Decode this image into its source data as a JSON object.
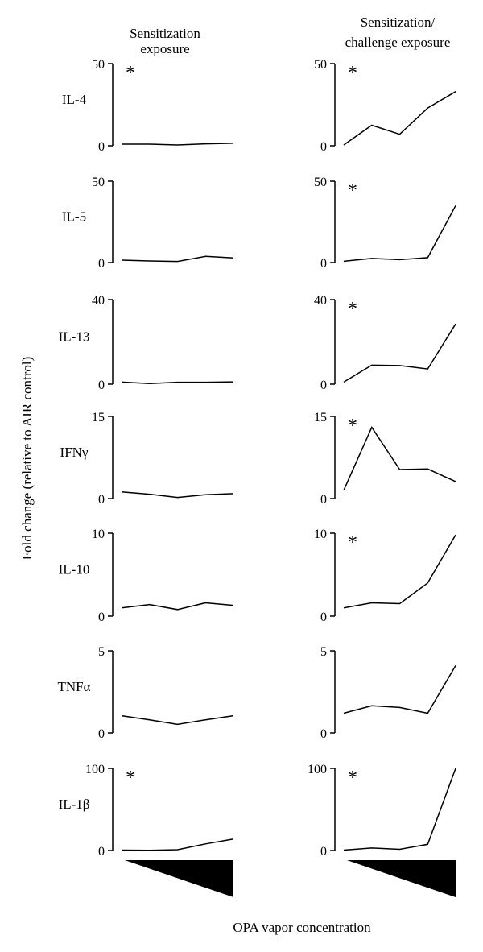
{
  "figure": {
    "col_titles": [
      [
        "Sensitization",
        "exposure"
      ],
      [
        "Sensitization/",
        "challenge exposure"
      ]
    ],
    "ylabel": "Fold change (relative to AIR control)",
    "xlabel": "OPA vapor concentration"
  },
  "chart_data": [
    {
      "type": "line",
      "panel": "IL-4 sensitization exposure",
      "label": "IL-4",
      "ylim": [
        0,
        50
      ],
      "yticks": [
        "0",
        "50"
      ],
      "asterisk": "*",
      "values": [
        1.0,
        1.0,
        0.5,
        1.2,
        1.5
      ]
    },
    {
      "type": "line",
      "panel": "IL-4 sensitization/challenge exposure",
      "label": "IL-4",
      "ylim": [
        0,
        50
      ],
      "yticks": [
        "0",
        "50"
      ],
      "asterisk": "*",
      "values": [
        0.5,
        12.5,
        7,
        23,
        33
      ]
    },
    {
      "type": "line",
      "panel": "IL-5 sensitization exposure",
      "label": "IL-5",
      "ylim": [
        0,
        50
      ],
      "yticks": [
        "0",
        "50"
      ],
      "asterisk": "",
      "values": [
        1.5,
        1.0,
        0.7,
        3.8,
        2.8
      ]
    },
    {
      "type": "line",
      "panel": "IL-5 sensitization/challenge exposure",
      "label": "IL-5",
      "ylim": [
        0,
        50
      ],
      "yticks": [
        "0",
        "50"
      ],
      "asterisk": "*",
      "values": [
        0.8,
        2.5,
        1.8,
        3.0,
        35
      ]
    },
    {
      "type": "line",
      "panel": "IL-13 sensitization exposure",
      "label": "IL-13",
      "ylim": [
        0,
        40
      ],
      "yticks": [
        "0",
        "40"
      ],
      "asterisk": "",
      "values": [
        1.0,
        0.3,
        0.9,
        0.9,
        1.1
      ]
    },
    {
      "type": "line",
      "panel": "IL-13 sensitization/challenge exposure",
      "label": "IL-13",
      "ylim": [
        0,
        40
      ],
      "yticks": [
        "0",
        "40"
      ],
      "asterisk": "*",
      "values": [
        1.0,
        9.0,
        8.8,
        7.2,
        28.5
      ]
    },
    {
      "type": "line",
      "panel": "IFNγ sensitization exposure",
      "label": "IFNγ",
      "ylim": [
        0,
        15
      ],
      "yticks": [
        "0",
        "15"
      ],
      "asterisk": "",
      "values": [
        1.2,
        0.8,
        0.2,
        0.7,
        0.9
      ]
    },
    {
      "type": "line",
      "panel": "IFNγ sensitization/challenge exposure",
      "label": "IFNγ",
      "ylim": [
        0,
        15
      ],
      "yticks": [
        "0",
        "15"
      ],
      "asterisk": "*",
      "values": [
        1.5,
        13.0,
        5.3,
        5.4,
        3.1
      ]
    },
    {
      "type": "line",
      "panel": "IL-10 sensitization exposure",
      "label": "IL-10",
      "ylim": [
        0,
        10
      ],
      "yticks": [
        "0",
        "10"
      ],
      "asterisk": "",
      "values": [
        1.0,
        1.4,
        0.8,
        1.6,
        1.3
      ]
    },
    {
      "type": "line",
      "panel": "IL-10 sensitization/challenge exposure",
      "label": "IL-10",
      "ylim": [
        0,
        10
      ],
      "yticks": [
        "0",
        "10"
      ],
      "asterisk": "*",
      "values": [
        1.0,
        1.6,
        1.5,
        4.0,
        9.8
      ]
    },
    {
      "type": "line",
      "panel": "TNFα sensitization exposure",
      "label": "TNFα",
      "ylim": [
        0,
        5
      ],
      "yticks": [
        "0",
        "5"
      ],
      "asterisk": "",
      "values": [
        1.05,
        0.8,
        0.52,
        0.8,
        1.05
      ]
    },
    {
      "type": "line",
      "panel": "TNFα sensitization/challenge exposure",
      "label": "TNFα",
      "ylim": [
        0,
        5
      ],
      "yticks": [
        "0",
        "5"
      ],
      "asterisk": "",
      "values": [
        1.2,
        1.65,
        1.55,
        1.2,
        4.1
      ]
    },
    {
      "type": "line",
      "panel": "IL-1β sensitization exposure",
      "label": "IL-1β",
      "ylim": [
        0,
        100
      ],
      "yticks": [
        "0",
        "100"
      ],
      "asterisk": "*",
      "values": [
        0.5,
        0.2,
        1.0,
        8.0,
        14.0
      ]
    },
    {
      "type": "line",
      "panel": "IL-1β sensitization/challenge exposure",
      "label": "IL-1β",
      "ylim": [
        0,
        100
      ],
      "yticks": [
        "0",
        "100"
      ],
      "asterisk": "*",
      "values": [
        0.5,
        3.0,
        1.5,
        7.5,
        100
      ]
    }
  ]
}
